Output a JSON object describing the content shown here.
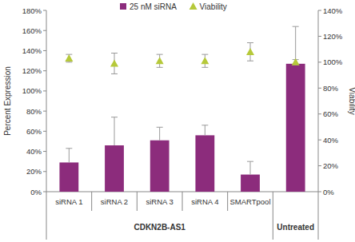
{
  "chart_data": {
    "type": "bar",
    "categories": [
      "siRNA 1",
      "siRNA 2",
      "siRNA 3",
      "siRNA 4",
      "SMARTpool",
      null
    ],
    "x_groups": [
      "CDKN2B-AS1",
      "CDKN2B-AS1",
      "CDKN2B-AS1",
      "CDKN2B-AS1",
      "CDKN2B-AS1",
      "Untreated"
    ],
    "y_label": "Percent Expression",
    "y2_label": "Viability",
    "ylim": [
      0,
      180
    ],
    "yticks": [
      {
        "value": 0,
        "label": "0%"
      },
      {
        "value": 20,
        "label": "20%"
      },
      {
        "value": 40,
        "label": "40%"
      },
      {
        "value": 60,
        "label": "60%"
      },
      {
        "value": 80,
        "label": "80%"
      },
      {
        "value": 100,
        "label": "100%"
      },
      {
        "value": 120,
        "label": "120%"
      },
      {
        "value": 140,
        "label": "140%"
      },
      {
        "value": 160,
        "label": "160%"
      },
      {
        "value": 180,
        "label": "180%"
      }
    ],
    "y2lim": [
      0,
      140
    ],
    "y2ticks": [
      {
        "value": 0,
        "label": "0%"
      },
      {
        "value": 20,
        "label": "20%"
      },
      {
        "value": 40,
        "label": "40%"
      },
      {
        "value": 60,
        "label": "60%"
      },
      {
        "value": 80,
        "label": "80%"
      },
      {
        "value": 100,
        "label": "100%"
      },
      {
        "value": 120,
        "label": "120%"
      },
      {
        "value": 140,
        "label": "140%"
      }
    ],
    "grid": false,
    "legend": "top",
    "series": [
      {
        "name": "25 nM siRNA",
        "type": "bar",
        "color": "#8c2c7c",
        "values": [
          29,
          46,
          51,
          56,
          17,
          127
        ],
        "errors": [
          14,
          28,
          13,
          10,
          13,
          37
        ]
      },
      {
        "name": "Viability",
        "type": "scatter",
        "marker": "triangle",
        "axis": "y2",
        "color": "#b6c93a",
        "values": [
          103,
          99,
          101,
          101,
          108,
          100
        ],
        "errors": [
          3,
          8,
          5,
          5,
          7,
          2
        ]
      }
    ]
  }
}
